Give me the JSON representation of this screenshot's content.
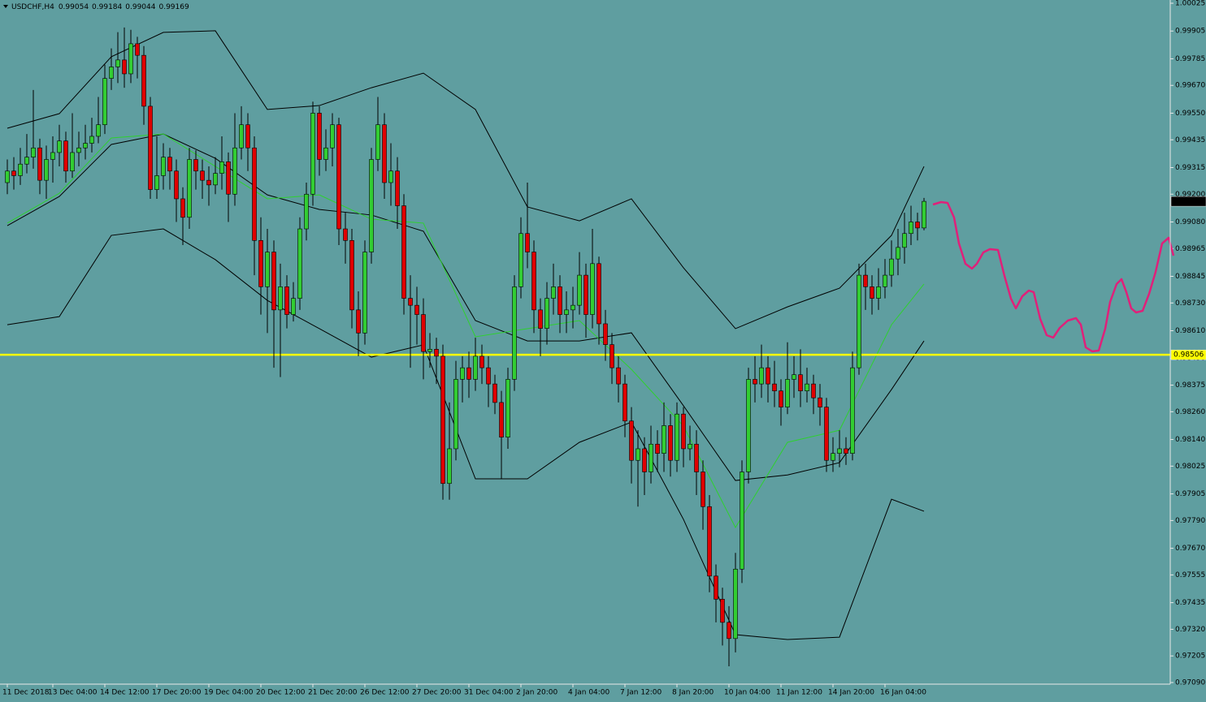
{
  "chart_data": {
    "type": "candlestick",
    "title": "USDCHF,H4",
    "ylim": [
      0.97083,
      1.00039
    ],
    "xlim": [
      -1.125,
      178.875
    ],
    "yticks": [
      1.00025,
      0.99905,
      0.99785,
      {
        "value": 0.9967,
        "label": "0.99670"
      },
      {
        "value": 0.9955,
        "label": "0.99550"
      },
      0.99435,
      0.99315,
      {
        "value": 0.992,
        "label": "0.99200"
      },
      {
        "value": 0.9908,
        "label": "0.99080"
      },
      0.98965,
      0.98845,
      {
        "value": 0.9873,
        "label": "0.98730"
      },
      {
        "value": 0.9861,
        "label": "0.98610"
      },
      {
        "value": 0.9849,
        "label": "0.98490"
      },
      0.98375,
      {
        "value": 0.9826,
        "label": "0.98260"
      },
      {
        "value": 0.9814,
        "label": "0.98140"
      },
      0.98025,
      0.97905,
      {
        "value": 0.9779,
        "label": "0.97790"
      },
      {
        "value": 0.9767,
        "label": "0.97670"
      },
      0.97555,
      0.97435,
      {
        "value": 0.9732,
        "label": "0.97320"
      },
      0.97205,
      {
        "value": 0.9709,
        "label": "0.97090"
      }
    ],
    "xticks": [
      {
        "value": 0,
        "label": "11 Dec 2018"
      },
      {
        "value": 7,
        "label": "13 Dec 04:00"
      },
      {
        "value": 15,
        "label": "14 Dec 12:00"
      },
      {
        "value": 23,
        "label": "17 Dec 20:00"
      },
      {
        "value": 31,
        "label": "19 Dec 04:00"
      },
      {
        "value": 39,
        "label": "20 Dec 12:00"
      },
      {
        "value": 47,
        "label": "21 Dec 20:00"
      },
      {
        "value": 55,
        "label": "26 Dec 12:00"
      },
      {
        "value": 63,
        "label": "27 Dec 20:00"
      },
      {
        "value": 71,
        "label": "31 Dec 04:00"
      },
      {
        "value": 79,
        "label": "2 Jan 20:00"
      },
      {
        "value": 87,
        "label": "4 Jan 04:00"
      },
      {
        "value": 95,
        "label": "7 Jan 12:00"
      },
      {
        "value": 103,
        "label": "8 Jan 20:00"
      },
      {
        "value": 111,
        "label": "10 Jan 04:00"
      },
      {
        "value": 119,
        "label": "11 Jan 12:00"
      },
      {
        "value": 127,
        "label": "14 Jan 20:00"
      },
      {
        "value": 135,
        "label": "16 Jan 04:00"
      }
    ],
    "up_color": "#32cd32",
    "down_color": "#e00000",
    "candles": [
      [
        0.9925,
        0.9935,
        0.992,
        0.993
      ],
      [
        0.993,
        0.9936,
        0.9922,
        0.9928
      ],
      [
        0.9928,
        0.994,
        0.9924,
        0.9933
      ],
      [
        0.9933,
        0.9946,
        0.9929,
        0.9936
      ],
      [
        0.9936,
        0.9965,
        0.9931,
        0.994
      ],
      [
        0.994,
        0.9944,
        0.992,
        0.9926
      ],
      [
        0.9926,
        0.9941,
        0.9918,
        0.9935
      ],
      [
        0.9935,
        0.9945,
        0.9925,
        0.9938
      ],
      [
        0.9938,
        0.995,
        0.9932,
        0.9943
      ],
      [
        0.9943,
        0.9947,
        0.9925,
        0.993
      ],
      [
        0.993,
        0.9955,
        0.9927,
        0.9938
      ],
      [
        0.9938,
        0.9947,
        0.9932,
        0.994
      ],
      [
        0.994,
        0.995,
        0.9935,
        0.9942
      ],
      [
        0.9942,
        0.9953,
        0.9938,
        0.9945
      ],
      [
        0.9945,
        0.9962,
        0.9942,
        0.995
      ],
      [
        0.995,
        0.9976,
        0.9946,
        0.997
      ],
      [
        0.997,
        0.9983,
        0.9965,
        0.9975
      ],
      [
        0.9975,
        0.999,
        0.9968,
        0.9978
      ],
      [
        0.9978,
        0.9992,
        0.9966,
        0.9972
      ],
      [
        0.9972,
        0.9991,
        0.9968,
        0.9985
      ],
      [
        0.9985,
        0.9988,
        0.997,
        0.998
      ],
      [
        0.998,
        0.9984,
        0.995,
        0.9958
      ],
      [
        0.9958,
        0.9962,
        0.9918,
        0.9922
      ],
      [
        0.9922,
        0.9945,
        0.9918,
        0.9928
      ],
      [
        0.9928,
        0.9942,
        0.9922,
        0.9936
      ],
      [
        0.9936,
        0.994,
        0.9922,
        0.993
      ],
      [
        0.993,
        0.9935,
        0.9908,
        0.9918
      ],
      [
        0.9918,
        0.9923,
        0.9898,
        0.991
      ],
      [
        0.991,
        0.994,
        0.9905,
        0.9935
      ],
      [
        0.9935,
        0.9939,
        0.9922,
        0.993
      ],
      [
        0.993,
        0.9935,
        0.9918,
        0.9926
      ],
      [
        0.9926,
        0.9932,
        0.9915,
        0.9924
      ],
      [
        0.9924,
        0.9936,
        0.992,
        0.9929
      ],
      [
        0.9929,
        0.9945,
        0.9922,
        0.9934
      ],
      [
        0.9934,
        0.9938,
        0.9908,
        0.992
      ],
      [
        0.992,
        0.9955,
        0.9915,
        0.994
      ],
      [
        0.994,
        0.9958,
        0.9935,
        0.995
      ],
      [
        0.995,
        0.9955,
        0.993,
        0.994
      ],
      [
        0.994,
        0.9945,
        0.9885,
        0.99
      ],
      [
        0.99,
        0.991,
        0.9868,
        0.988
      ],
      [
        0.988,
        0.9905,
        0.986,
        0.9895
      ],
      [
        0.9895,
        0.99,
        0.9845,
        0.987
      ],
      [
        0.987,
        0.989,
        0.9841,
        0.988
      ],
      [
        0.988,
        0.9885,
        0.9862,
        0.9868
      ],
      [
        0.9868,
        0.9882,
        0.9865,
        0.9875
      ],
      [
        0.9875,
        0.991,
        0.987,
        0.9905
      ],
      [
        0.9905,
        0.9925,
        0.99,
        0.992
      ],
      [
        0.992,
        0.996,
        0.9915,
        0.9955
      ],
      [
        0.9955,
        0.9958,
        0.9928,
        0.9935
      ],
      [
        0.9935,
        0.9948,
        0.993,
        0.994
      ],
      [
        0.994,
        0.9955,
        0.9932,
        0.995
      ],
      [
        0.995,
        0.9953,
        0.9898,
        0.9905
      ],
      [
        0.9905,
        0.9912,
        0.989,
        0.99
      ],
      [
        0.99,
        0.9905,
        0.9862,
        0.987
      ],
      [
        0.987,
        0.9878,
        0.985,
        0.986
      ],
      [
        0.986,
        0.99,
        0.9855,
        0.9895
      ],
      [
        0.9895,
        0.994,
        0.989,
        0.9935
      ],
      [
        0.9935,
        0.9962,
        0.993,
        0.995
      ],
      [
        0.995,
        0.9955,
        0.9918,
        0.9925
      ],
      [
        0.9925,
        0.9942,
        0.9915,
        0.993
      ],
      [
        0.993,
        0.9936,
        0.9905,
        0.9915
      ],
      [
        0.9915,
        0.992,
        0.9868,
        0.9875
      ],
      [
        0.9875,
        0.9885,
        0.9845,
        0.9872
      ],
      [
        0.9872,
        0.988,
        0.9855,
        0.9868
      ],
      [
        0.9868,
        0.9875,
        0.984,
        0.9852
      ],
      [
        0.9852,
        0.986,
        0.9845,
        0.9853
      ],
      [
        0.9853,
        0.9858,
        0.9838,
        0.985
      ],
      [
        0.985,
        0.9855,
        0.9788,
        0.9795
      ],
      [
        0.9795,
        0.983,
        0.9788,
        0.981
      ],
      [
        0.981,
        0.9848,
        0.9805,
        0.984
      ],
      [
        0.984,
        0.985,
        0.983,
        0.9845
      ],
      [
        0.9845,
        0.9852,
        0.9832,
        0.984
      ],
      [
        0.984,
        0.9858,
        0.9835,
        0.985
      ],
      [
        0.985,
        0.9855,
        0.9838,
        0.9845
      ],
      [
        0.9845,
        0.985,
        0.9828,
        0.9838
      ],
      [
        0.9838,
        0.9842,
        0.9825,
        0.983
      ],
      [
        0.983,
        0.9835,
        0.9797,
        0.9815
      ],
      [
        0.9815,
        0.9845,
        0.981,
        0.984
      ],
      [
        0.984,
        0.9885,
        0.9835,
        0.988
      ],
      [
        0.988,
        0.991,
        0.9875,
        0.9903
      ],
      [
        0.9903,
        0.9925,
        0.9888,
        0.9895
      ],
      [
        0.9895,
        0.99,
        0.986,
        0.987
      ],
      [
        0.987,
        0.9875,
        0.985,
        0.9862
      ],
      [
        0.9862,
        0.9882,
        0.9855,
        0.9875
      ],
      [
        0.9875,
        0.989,
        0.9868,
        0.988
      ],
      [
        0.988,
        0.9885,
        0.986,
        0.9868
      ],
      [
        0.9868,
        0.9878,
        0.986,
        0.987
      ],
      [
        0.987,
        0.988,
        0.9862,
        0.9872
      ],
      [
        0.9872,
        0.9895,
        0.9868,
        0.9885
      ],
      [
        0.9885,
        0.989,
        0.9858,
        0.9868
      ],
      [
        0.9868,
        0.9905,
        0.9862,
        0.989
      ],
      [
        0.989,
        0.9893,
        0.9855,
        0.9864
      ],
      [
        0.9864,
        0.987,
        0.9848,
        0.9855
      ],
      [
        0.9855,
        0.986,
        0.9838,
        0.9845
      ],
      [
        0.9845,
        0.985,
        0.983,
        0.9838
      ],
      [
        0.9838,
        0.9842,
        0.9815,
        0.9822
      ],
      [
        0.9822,
        0.9828,
        0.9795,
        0.9805
      ],
      [
        0.9805,
        0.9818,
        0.9785,
        0.981
      ],
      [
        0.981,
        0.9815,
        0.979,
        0.98
      ],
      [
        0.98,
        0.982,
        0.9795,
        0.9812
      ],
      [
        0.9812,
        0.9818,
        0.98,
        0.9808
      ],
      [
        0.9808,
        0.983,
        0.98,
        0.982
      ],
      [
        0.982,
        0.9825,
        0.9798,
        0.9805
      ],
      [
        0.9805,
        0.983,
        0.98,
        0.9825
      ],
      [
        0.9825,
        0.9828,
        0.9802,
        0.981
      ],
      [
        0.981,
        0.982,
        0.9805,
        0.9812
      ],
      [
        0.9812,
        0.9818,
        0.979,
        0.98
      ],
      [
        0.98,
        0.9805,
        0.9775,
        0.9785
      ],
      [
        0.9785,
        0.979,
        0.9748,
        0.9755
      ],
      [
        0.9755,
        0.976,
        0.9735,
        0.9745
      ],
      [
        0.9745,
        0.975,
        0.9725,
        0.9735
      ],
      [
        0.9735,
        0.9742,
        0.9716,
        0.9728
      ],
      [
        0.9728,
        0.9765,
        0.9722,
        0.9758
      ],
      [
        0.9758,
        0.9805,
        0.9752,
        0.98
      ],
      [
        0.98,
        0.9845,
        0.9795,
        0.984
      ],
      [
        0.984,
        0.985,
        0.983,
        0.9838
      ],
      [
        0.9838,
        0.9855,
        0.9832,
        0.9845
      ],
      [
        0.9845,
        0.985,
        0.983,
        0.9838
      ],
      [
        0.9838,
        0.9848,
        0.9828,
        0.9835
      ],
      [
        0.9835,
        0.984,
        0.982,
        0.9828
      ],
      [
        0.9828,
        0.9856,
        0.9825,
        0.984
      ],
      [
        0.984,
        0.985,
        0.9832,
        0.9842
      ],
      [
        0.9842,
        0.9853,
        0.9828,
        0.9835
      ],
      [
        0.9835,
        0.9845,
        0.983,
        0.9838
      ],
      [
        0.9838,
        0.9842,
        0.9825,
        0.9832
      ],
      [
        0.9832,
        0.9838,
        0.982,
        0.9828
      ],
      [
        0.9828,
        0.9832,
        0.98,
        0.9805
      ],
      [
        0.9805,
        0.9815,
        0.98,
        0.9808
      ],
      [
        0.9808,
        0.9818,
        0.9802,
        0.981
      ],
      [
        0.981,
        0.9815,
        0.9803,
        0.9808
      ],
      [
        0.9808,
        0.9852,
        0.9805,
        0.9845
      ],
      [
        0.9845,
        0.989,
        0.9842,
        0.9885
      ],
      [
        0.9885,
        0.989,
        0.987,
        0.988
      ],
      [
        0.988,
        0.9885,
        0.9868,
        0.9875
      ],
      [
        0.9875,
        0.9888,
        0.987,
        0.988
      ],
      [
        0.988,
        0.9892,
        0.9875,
        0.9885
      ],
      [
        0.9885,
        0.99,
        0.988,
        0.9892
      ],
      [
        0.9892,
        0.9905,
        0.9885,
        0.9897
      ],
      [
        0.9897,
        0.9912,
        0.989,
        0.9903
      ],
      [
        0.9903,
        0.9915,
        0.9898,
        0.9908
      ],
      [
        0.9908,
        0.9912,
        0.99,
        0.99054
      ],
      [
        0.99054,
        0.99184,
        0.99044,
        0.99169
      ]
    ],
    "lines": [
      {
        "color": "#000000",
        "x": [
          0,
          8,
          16,
          24,
          32,
          40,
          48,
          56,
          64,
          72,
          80,
          88,
          96,
          104,
          112,
          120,
          128,
          136,
          141
        ],
        "values": [
          0.99485,
          0.99548,
          0.99794,
          0.99899,
          0.99906,
          0.99566,
          0.99583,
          0.9966,
          0.99723,
          0.99566,
          0.99145,
          0.99085,
          0.9918,
          0.98882,
          0.98619,
          0.98713,
          0.98794,
          0.99022,
          0.9932
        ]
      },
      {
        "color": "#000000",
        "x": [
          0,
          8,
          16,
          24,
          32,
          40,
          48,
          56,
          64,
          72,
          80,
          88,
          96,
          104,
          112,
          120,
          128,
          136,
          141
        ],
        "values": [
          0.99064,
          0.9919,
          0.99415,
          0.9946,
          0.99355,
          0.99197,
          0.99134,
          0.9911,
          0.9904,
          0.98654,
          0.98566,
          0.98566,
          0.98601,
          0.98286,
          0.97963,
          0.97987,
          0.9804,
          0.98356,
          0.98566
        ]
      },
      {
        "color": "#000000",
        "x": [
          0,
          8,
          16,
          24,
          32,
          40,
          48,
          56,
          64,
          72,
          80,
          88,
          96,
          104,
          112,
          120,
          128,
          136,
          141
        ],
        "values": [
          0.98636,
          0.98671,
          0.99022,
          0.9905,
          0.98917,
          0.98741,
          0.98619,
          0.98496,
          0.98549,
          0.9797,
          0.9797,
          0.98128,
          0.98215,
          0.97795,
          0.97297,
          0.97276,
          0.97286,
          0.97882,
          0.9783
        ]
      },
      {
        "color": "#2fd02f",
        "x": [
          0,
          8,
          16,
          24,
          32,
          40,
          48,
          56,
          64,
          72,
          80,
          88,
          96,
          104,
          112,
          120,
          128,
          136,
          141
        ],
        "values": [
          0.99075,
          0.99204,
          0.99443,
          0.9946,
          0.9932,
          0.9918,
          0.99197,
          0.99092,
          0.99075,
          0.98584,
          0.98619,
          0.98654,
          0.98443,
          0.98198,
          0.9776,
          0.98128,
          0.9818,
          0.98636,
          0.98812
        ]
      }
    ],
    "hline": {
      "value": 0.98506,
      "color": "#ffff00"
    }
  }
}
